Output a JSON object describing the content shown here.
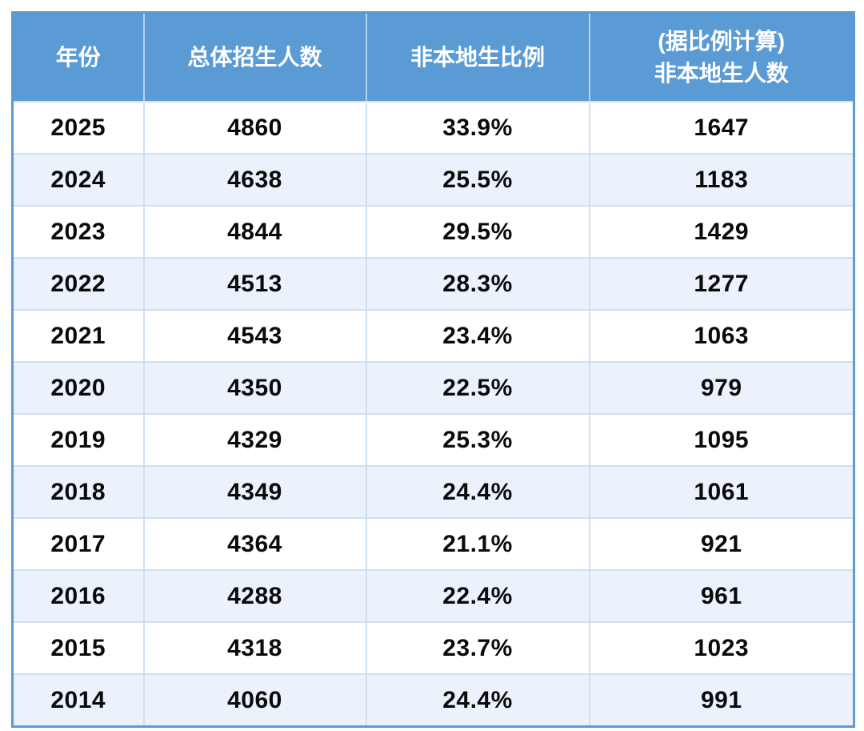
{
  "colors": {
    "header_bg": "#5b9bd5",
    "header_text": "#ffffff",
    "alt_row_bg": "#ebf2fb",
    "row_bg": "#ffffff",
    "grid_line": "#cfe0f3",
    "outer_border": "#5b9bd5",
    "body_text": "#0a0a0a"
  },
  "table": {
    "headers": [
      {
        "line1": "年份",
        "line2": ""
      },
      {
        "line1": "总体招生人数",
        "line2": ""
      },
      {
        "line1": "非本地生比例",
        "line2": ""
      },
      {
        "line1": "(据比例计算)",
        "line2": "非本地生人数"
      }
    ],
    "rows": [
      {
        "year": "2025",
        "total": "4860",
        "ratio": "33.9%",
        "nonlocal": "1647"
      },
      {
        "year": "2024",
        "total": "4638",
        "ratio": "25.5%",
        "nonlocal": "1183"
      },
      {
        "year": "2023",
        "total": "4844",
        "ratio": "29.5%",
        "nonlocal": "1429"
      },
      {
        "year": "2022",
        "total": "4513",
        "ratio": "28.3%",
        "nonlocal": "1277"
      },
      {
        "year": "2021",
        "total": "4543",
        "ratio": "23.4%",
        "nonlocal": "1063"
      },
      {
        "year": "2020",
        "total": "4350",
        "ratio": "22.5%",
        "nonlocal": "979"
      },
      {
        "year": "2019",
        "total": "4329",
        "ratio": "25.3%",
        "nonlocal": "1095"
      },
      {
        "year": "2018",
        "total": "4349",
        "ratio": "24.4%",
        "nonlocal": "1061"
      },
      {
        "year": "2017",
        "total": "4364",
        "ratio": "21.1%",
        "nonlocal": "921"
      },
      {
        "year": "2016",
        "total": "4288",
        "ratio": "22.4%",
        "nonlocal": "961"
      },
      {
        "year": "2015",
        "total": "4318",
        "ratio": "23.7%",
        "nonlocal": "1023"
      },
      {
        "year": "2014",
        "total": "4060",
        "ratio": "24.4%",
        "nonlocal": "991"
      }
    ]
  },
  "chart_data": {
    "type": "table",
    "title": "",
    "columns": [
      "年份",
      "总体招生人数",
      "非本地生比例",
      "(据比例计算)非本地生人数"
    ],
    "rows": [
      [
        2025,
        4860,
        "33.9%",
        1647
      ],
      [
        2024,
        4638,
        "25.5%",
        1183
      ],
      [
        2023,
        4844,
        "29.5%",
        1429
      ],
      [
        2022,
        4513,
        "28.3%",
        1277
      ],
      [
        2021,
        4543,
        "23.4%",
        1063
      ],
      [
        2020,
        4350,
        "22.5%",
        979
      ],
      [
        2019,
        4329,
        "25.3%",
        1095
      ],
      [
        2018,
        4349,
        "24.4%",
        1061
      ],
      [
        2017,
        4364,
        "21.1%",
        921
      ],
      [
        2016,
        4288,
        "22.4%",
        961
      ],
      [
        2015,
        4318,
        "23.7%",
        1023
      ],
      [
        2014,
        4060,
        "24.4%",
        991
      ]
    ]
  }
}
